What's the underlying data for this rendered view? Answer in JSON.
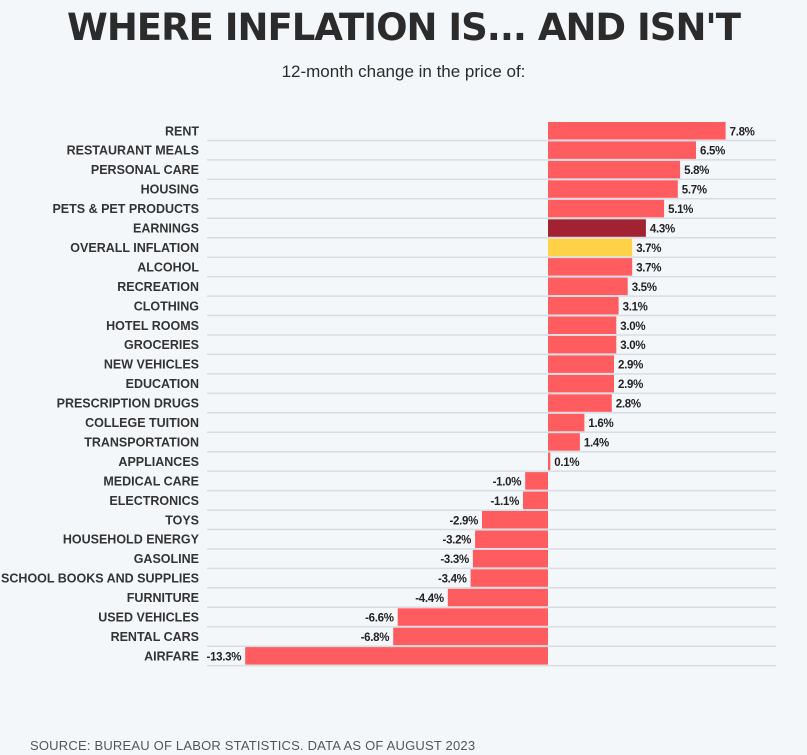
{
  "chart_data": {
    "type": "bar",
    "orientation": "horizontal",
    "title": "WHERE INFLATION IS... AND ISN'T",
    "subtitle": "12-month change in the price of:",
    "categories": [
      "RENT",
      "RESTAURANT MEALS",
      "PERSONAL CARE",
      "HOUSING",
      "PETS & PET PRODUCTS",
      "EARNINGS",
      "OVERALL INFLATION",
      "ALCOHOL",
      "RECREATION",
      "CLOTHING",
      "HOTEL ROOMS",
      "GROCERIES",
      "NEW VEHICLES",
      "EDUCATION",
      "PRESCRIPTION DRUGS",
      "COLLEGE TUITION",
      "TRANSPORTATION",
      "APPLIANCES",
      "MEDICAL CARE",
      "ELECTRONICS",
      "TOYS",
      "HOUSEHOLD ENERGY",
      "GASOLINE",
      "SCHOOL BOOKS AND SUPPLIES",
      "FURNITURE",
      "USED VEHICLES",
      "RENTAL CARS",
      "AIRFARE"
    ],
    "values": [
      7.8,
      6.5,
      5.8,
      5.7,
      5.1,
      4.3,
      3.7,
      3.7,
      3.5,
      3.1,
      3.0,
      3.0,
      2.9,
      2.9,
      2.8,
      1.6,
      1.4,
      0.1,
      -1.0,
      -1.1,
      -2.9,
      -3.2,
      -3.3,
      -3.4,
      -4.4,
      -6.6,
      -6.8,
      -13.3
    ],
    "labels": [
      "7.8%",
      "6.5%",
      "5.8%",
      "5.7%",
      "5.1%",
      "4.3%",
      "3.7%",
      "3.7%",
      "3.5%",
      "3.1%",
      "3.0%",
      "3.0%",
      "2.9%",
      "2.9%",
      "2.8%",
      "1.6%",
      "1.4%",
      "0.1%",
      "-1.0%",
      "-1.1%",
      "-2.9%",
      "-3.2%",
      "-3.3%",
      "-3.4%",
      "-4.4%",
      "-6.6%",
      "-6.8%",
      "-13.3%"
    ],
    "highlights": {
      "EARNINGS": "#a32232",
      "OVERALL INFLATION": "#ffd147"
    },
    "default_color": "#ff5c5f",
    "xlim": [
      -13.3,
      7.8
    ],
    "grid": true
  },
  "footer": {
    "source": "SOURCE: BUREAU OF LABOR STATISTICS. DATA AS OF AUGUST 2023"
  },
  "colors": {
    "background": "#f4f7fa",
    "text": "#2b2b2b",
    "gridline": "#d6dde3"
  }
}
